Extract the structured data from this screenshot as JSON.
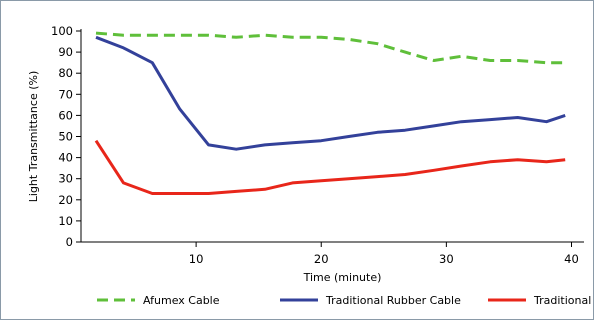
{
  "chart_data": {
    "type": "line",
    "title": "",
    "xlabel": "Time (minute)",
    "ylabel": "Light Transmittance (%)",
    "xlim": [
      0.8,
      41
    ],
    "ylim": [
      0,
      100
    ],
    "xticks": [
      10,
      20,
      30,
      40
    ],
    "yticks": [
      0,
      10,
      20,
      30,
      40,
      50,
      60,
      70,
      80,
      90,
      100
    ],
    "grid": false,
    "legend_position": "bottom",
    "series": [
      {
        "name": "Afumex Cable",
        "color": "#5fbf3a",
        "style": "dashed",
        "x": [
          2,
          4.2,
          6.5,
          8.7,
          11,
          13.2,
          15.5,
          17.7,
          20,
          22.2,
          24.5,
          26.7,
          29,
          31.2,
          33.5,
          35.7,
          38,
          39.5
        ],
        "y": [
          99,
          98,
          98,
          98,
          98,
          97,
          98,
          97,
          97,
          96,
          94,
          90,
          86,
          88,
          86,
          86,
          85,
          85
        ]
      },
      {
        "name": "Traditional Rubber Cable",
        "color": "#33419a",
        "style": "solid",
        "x": [
          2,
          4.2,
          6.5,
          8.7,
          11,
          13.2,
          15.5,
          17.7,
          20,
          22.2,
          24.5,
          26.7,
          29,
          31.2,
          33.5,
          35.7,
          38,
          39.5
        ],
        "y": [
          97,
          92,
          85,
          63,
          46,
          44,
          46,
          47,
          48,
          50,
          52,
          53,
          55,
          57,
          58,
          59,
          57,
          60
        ]
      },
      {
        "name": "Traditional PVC Cable",
        "color": "#e8261a",
        "style": "solid",
        "x": [
          2,
          4.2,
          6.5,
          8.7,
          11,
          13.2,
          15.5,
          17.7,
          20,
          22.2,
          24.5,
          26.7,
          29,
          31.2,
          33.5,
          35.7,
          38,
          39.5
        ],
        "y": [
          48,
          28,
          23,
          23,
          23,
          24,
          25,
          28,
          29,
          30,
          31,
          32,
          34,
          36,
          38,
          39,
          38,
          39
        ]
      }
    ]
  }
}
